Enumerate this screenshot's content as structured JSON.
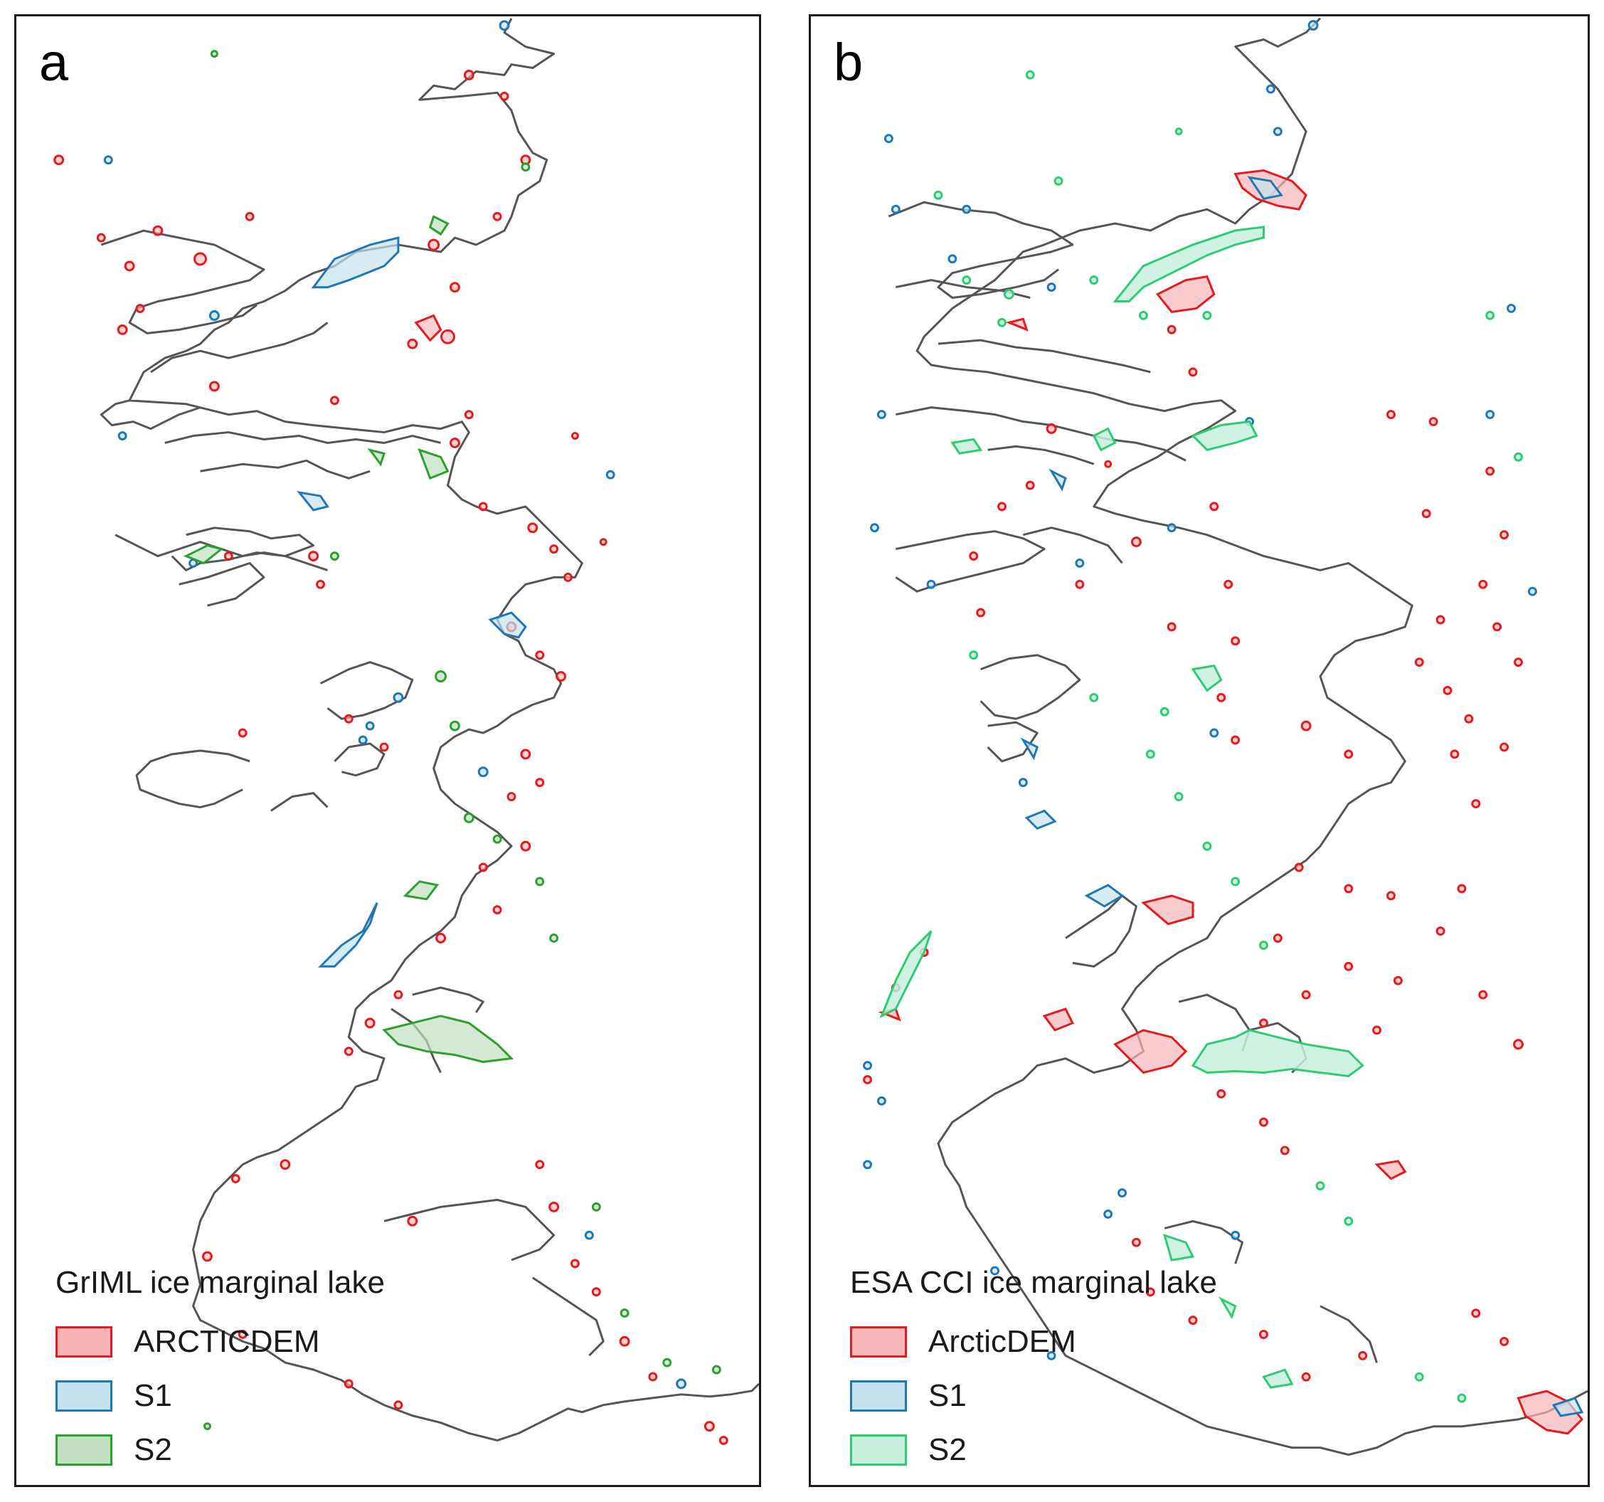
{
  "panels": {
    "a": {
      "letter": "a",
      "legend_title": "GrIML ice marginal lake",
      "legend": [
        {
          "label": "ARCTICDEM",
          "stroke": "#e41a1c",
          "fill": "#f9b4b5"
        },
        {
          "label": "S1",
          "stroke": "#1f77b4",
          "fill": "#c6e2ee"
        },
        {
          "label": "S2",
          "stroke": "#2ca02c",
          "fill": "#c2dfc2"
        }
      ]
    },
    "b": {
      "letter": "b",
      "legend_title": "ESA CCI ice marginal lake",
      "legend": [
        {
          "label": "ArcticDEM",
          "stroke": "#e41a1c",
          "fill": "#f5b7b9"
        },
        {
          "label": "S1",
          "stroke": "#1f77b4",
          "fill": "#c6e2ee"
        },
        {
          "label": "S2",
          "stroke": "#2ecc71",
          "fill": "#c8f0dd"
        }
      ]
    }
  },
  "colors": {
    "ice_margin": "#555555",
    "arcticdem": "#e41a1c",
    "s1": "#1f77b4",
    "s2_a": "#2ca02c",
    "s2_b": "#2ecc71"
  }
}
